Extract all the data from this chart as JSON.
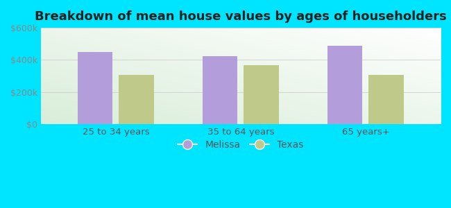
{
  "title": "Breakdown of mean house values by ages of householders",
  "categories": [
    "25 to 34 years",
    "35 to 64 years",
    "65 years+"
  ],
  "melissa_values": [
    450000,
    425000,
    490000
  ],
  "texas_values": [
    305000,
    365000,
    305000
  ],
  "melissa_color": "#b39ddb",
  "texas_color": "#bec98a",
  "ylim": [
    0,
    600000
  ],
  "yticks": [
    0,
    200000,
    400000,
    600000
  ],
  "ytick_labels": [
    "$0",
    "$200k",
    "$400k",
    "$600k"
  ],
  "background_outer": "#00e5ff",
  "grid_color": "#cccccc",
  "legend_melissa": "Melissa",
  "legend_texas": "Texas",
  "bar_width": 0.28,
  "title_fontsize": 13
}
